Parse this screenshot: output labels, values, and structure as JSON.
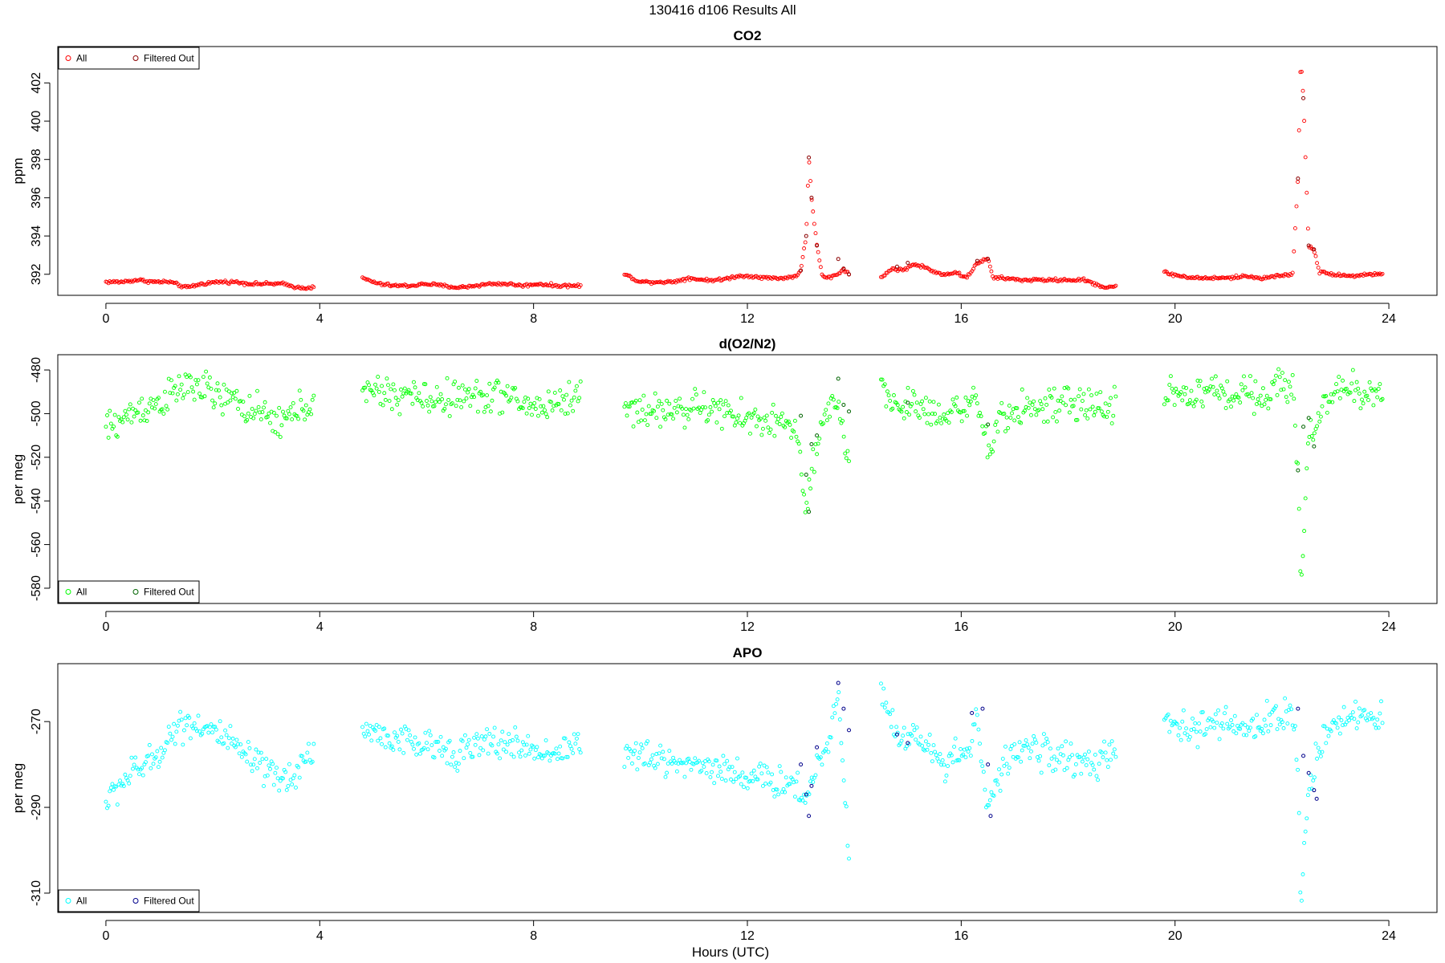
{
  "figure": {
    "title": "130416   d106   Results All",
    "xlabel": "Hours (UTC)",
    "colors": {
      "co2_all": "#ff0000",
      "co2_filtered": "#8b0000",
      "o2_all": "#00ff00",
      "o2_filtered": "#006400",
      "apo_all": "#00ffff",
      "apo_filtered": "#00008b"
    }
  },
  "chart_data": [
    {
      "type": "scatter",
      "title": "CO2",
      "xlabel": "",
      "ylabel": "ppm",
      "xlim": [
        -0.9,
        24.9
      ],
      "ylim": [
        390.9,
        403.9
      ],
      "xticks": [
        0,
        4,
        8,
        12,
        16,
        20,
        24
      ],
      "yticks": [
        392,
        394,
        396,
        398,
        400,
        402
      ],
      "grid": false,
      "legend": {
        "position": "top-left",
        "entries": [
          "All",
          "Filtered Out"
        ]
      },
      "series": [
        {
          "name": "All",
          "color": "#ff0000",
          "segments": [
            {
              "x": [
                0.0,
                0.3,
                0.6,
                0.9,
                1.2,
                1.5,
                1.8,
                2.1,
                2.4,
                2.7,
                3.0,
                3.3,
                3.6,
                3.9
              ],
              "y": [
                391.6,
                391.6,
                391.7,
                391.6,
                391.6,
                391.3,
                391.5,
                391.6,
                391.6,
                391.5,
                391.5,
                391.5,
                391.3,
                391.3
              ]
            },
            {
              "x": [
                4.8,
                5.1,
                5.4,
                5.7,
                6.0,
                6.3,
                6.6,
                6.9,
                7.2,
                7.5,
                7.8,
                8.1,
                8.4,
                8.7,
                8.9
              ],
              "y": [
                391.8,
                391.5,
                391.4,
                391.4,
                391.5,
                391.4,
                391.3,
                391.4,
                391.5,
                391.5,
                391.4,
                391.5,
                391.4,
                391.4,
                391.4
              ]
            },
            {
              "x": [
                9.7,
                10.0,
                10.3,
                10.6,
                10.9,
                11.2,
                11.5,
                11.8,
                12.1,
                12.4,
                12.7,
                12.9,
                13.0,
                13.1,
                13.15,
                13.2,
                13.3,
                13.4,
                13.5,
                13.6,
                13.7,
                13.8,
                13.9
              ],
              "y": [
                392.0,
                391.6,
                391.6,
                391.6,
                391.8,
                391.7,
                391.7,
                391.9,
                391.9,
                391.8,
                391.8,
                391.9,
                392.2,
                394.0,
                398.1,
                396.0,
                393.5,
                391.9,
                391.8,
                391.9,
                392.0,
                392.3,
                392.0
              ]
            },
            {
              "x": [
                14.5,
                14.7,
                14.9,
                15.1,
                15.3,
                15.5,
                15.7,
                15.9,
                16.1,
                16.3,
                16.5,
                16.6,
                16.8,
                17.1,
                17.4,
                17.7,
                18.0,
                18.3,
                18.5,
                18.7,
                18.9
              ],
              "y": [
                391.8,
                392.3,
                392.2,
                392.5,
                392.4,
                392.1,
                392.0,
                392.1,
                391.8,
                392.6,
                392.8,
                391.8,
                391.8,
                391.7,
                391.7,
                391.7,
                391.7,
                391.7,
                391.5,
                391.3,
                391.4
              ]
            },
            {
              "x": [
                19.8,
                20.1,
                20.4,
                20.7,
                21.0,
                21.3,
                21.6,
                21.9,
                22.2,
                22.3,
                22.35,
                22.4,
                22.5,
                22.6,
                22.7,
                23.0,
                23.3,
                23.6,
                23.9
              ],
              "y": [
                392.1,
                391.9,
                391.8,
                391.8,
                391.8,
                391.9,
                391.8,
                391.9,
                392.0,
                397.0,
                403.4,
                401.2,
                393.5,
                393.3,
                392.1,
                392.0,
                391.9,
                392.0,
                392.0
              ]
            }
          ]
        },
        {
          "name": "Filtered Out",
          "color": "#8b0000",
          "segments": [
            {
              "x": [
                13.0,
                13.1,
                13.15,
                13.2,
                13.3,
                13.7,
                13.8,
                13.9
              ],
              "y": [
                392.2,
                394.0,
                398.1,
                396.0,
                393.5,
                392.8,
                392.3,
                392.0
              ]
            },
            {
              "x": [
                14.8,
                15.0,
                16.3,
                16.5
              ],
              "y": [
                392.4,
                392.6,
                392.7,
                392.8
              ]
            },
            {
              "x": [
                22.3,
                22.4,
                22.5,
                22.6
              ],
              "y": [
                397.0,
                401.2,
                393.5,
                393.3
              ]
            }
          ]
        }
      ]
    },
    {
      "type": "scatter",
      "title": "d(O2/N2)",
      "xlabel": "",
      "ylabel": "per meg",
      "xlim": [
        -0.9,
        24.9
      ],
      "ylim": [
        -587,
        -473
      ],
      "xticks": [
        0,
        4,
        8,
        12,
        16,
        20,
        24
      ],
      "yticks": [
        -580,
        -560,
        -540,
        -520,
        -500,
        -480
      ],
      "grid": false,
      "legend": {
        "position": "bottom-left",
        "entries": [
          "All",
          "Filtered Out"
        ]
      },
      "series": [
        {
          "name": "All",
          "color": "#00ff00",
          "segments": [
            {
              "x": [
                0.0,
                0.3,
                0.6,
                0.9,
                1.2,
                1.5,
                1.8,
                2.1,
                2.4,
                2.7,
                3.0,
                3.3,
                3.6,
                3.9
              ],
              "y": [
                -507,
                -503,
                -498,
                -496,
                -492,
                -487,
                -488,
                -493,
                -494,
                -498,
                -502,
                -504,
                -498,
                -494
              ]
            },
            {
              "x": [
                4.8,
                5.1,
                5.4,
                5.7,
                6.0,
                6.3,
                6.6,
                6.9,
                7.2,
                7.5,
                7.8,
                8.1,
                8.4,
                8.7,
                8.9
              ],
              "y": [
                -492,
                -490,
                -492,
                -491,
                -494,
                -493,
                -492,
                -493,
                -491,
                -492,
                -496,
                -497,
                -495,
                -493,
                -491
              ]
            },
            {
              "x": [
                9.7,
                10.0,
                10.3,
                10.6,
                10.9,
                11.2,
                11.5,
                11.8,
                12.1,
                12.4,
                12.7,
                12.9,
                13.1,
                13.3,
                13.5,
                13.7,
                13.9
              ],
              "y": [
                -497,
                -498,
                -499,
                -498,
                -498,
                -497,
                -499,
                -502,
                -503,
                -503,
                -505,
                -506,
                -545,
                -515,
                -500,
                -495,
                -520
              ]
            },
            {
              "x": [
                14.5,
                14.7,
                14.9,
                15.1,
                15.3,
                15.5,
                15.7,
                15.9,
                16.1,
                16.3,
                16.5,
                16.7,
                16.9,
                17.2,
                17.5,
                17.8,
                18.1,
                18.4,
                18.7,
                18.9
              ],
              "y": [
                -488,
                -495,
                -497,
                -495,
                -498,
                -500,
                -499,
                -497,
                -498,
                -495,
                -518,
                -505,
                -500,
                -496,
                -498,
                -496,
                -496,
                -497,
                -497,
                -495
              ]
            },
            {
              "x": [
                19.8,
                20.1,
                20.4,
                20.7,
                21.0,
                21.3,
                21.6,
                21.9,
                22.2,
                22.3,
                22.35,
                22.5,
                22.6,
                22.8,
                23.1,
                23.4,
                23.7,
                23.9
              ],
              "y": [
                -490,
                -491,
                -492,
                -489,
                -491,
                -490,
                -491,
                -488,
                -487,
                -526,
                -583,
                -510,
                -507,
                -493,
                -490,
                -490,
                -491,
                -489
              ]
            }
          ]
        },
        {
          "name": "Filtered Out",
          "color": "#006400",
          "segments": [
            {
              "x": [
                13.0,
                13.1,
                13.15,
                13.2,
                13.3,
                13.7,
                13.8,
                13.9
              ],
              "y": [
                -501,
                -528,
                -545,
                -514,
                -510,
                -484,
                -496,
                -499
              ]
            },
            {
              "x": [
                15.0,
                16.5
              ],
              "y": [
                -495,
                -505
              ]
            },
            {
              "x": [
                22.3,
                22.4,
                22.5,
                22.6
              ],
              "y": [
                -526,
                -506,
                -502,
                -515
              ]
            }
          ]
        }
      ]
    },
    {
      "type": "scatter",
      "title": "APO",
      "xlabel": "Hours (UTC)",
      "ylabel": "per meg",
      "xlim": [
        -0.9,
        24.9
      ],
      "ylim": [
        -314.5,
        -256.5
      ],
      "xticks": [
        0,
        4,
        8,
        12,
        16,
        20,
        24
      ],
      "yticks": [
        -310,
        -290,
        -270
      ],
      "grid": false,
      "legend": {
        "position": "bottom-left",
        "entries": [
          "All",
          "Filtered Out"
        ]
      },
      "series": [
        {
          "name": "All",
          "color": "#00ffff",
          "segments": [
            {
              "x": [
                0.0,
                0.3,
                0.6,
                0.9,
                1.2,
                1.5,
                1.8,
                2.1,
                2.4,
                2.7,
                3.0,
                3.3,
                3.6,
                3.9
              ],
              "y": [
                -289,
                -284,
                -281,
                -279,
                -273,
                -270,
                -271,
                -273,
                -276,
                -279,
                -282,
                -284,
                -281,
                -276
              ]
            },
            {
              "x": [
                4.8,
                5.1,
                5.4,
                5.7,
                6.0,
                6.3,
                6.6,
                6.9,
                7.2,
                7.5,
                7.8,
                8.1,
                8.4,
                8.7,
                8.9
              ],
              "y": [
                -272,
                -273,
                -274,
                -275,
                -276,
                -276,
                -277,
                -276,
                -275,
                -275,
                -276,
                -277,
                -277,
                -276,
                -274
              ]
            },
            {
              "x": [
                9.7,
                10.0,
                10.3,
                10.6,
                10.9,
                11.2,
                11.5,
                11.8,
                12.1,
                12.4,
                12.7,
                12.9,
                13.1,
                13.3,
                13.5,
                13.7,
                13.9
              ],
              "y": [
                -278,
                -278,
                -279,
                -279,
                -280,
                -280,
                -281,
                -282,
                -283,
                -284,
                -284,
                -285,
                -288,
                -280,
                -276,
                -262,
                -301
              ]
            },
            {
              "x": [
                14.5,
                14.7,
                14.9,
                15.1,
                15.3,
                15.5,
                15.7,
                15.9,
                16.1,
                16.3,
                16.5,
                16.7,
                16.9,
                17.2,
                17.5,
                17.8,
                18.1,
                18.4,
                18.7,
                18.9
              ],
              "y": [
                -262,
                -271,
                -274,
                -272,
                -276,
                -278,
                -279,
                -277,
                -278,
                -269,
                -290,
                -284,
                -278,
                -276,
                -277,
                -278,
                -279,
                -280,
                -279,
                -277
              ]
            },
            {
              "x": [
                19.8,
                20.1,
                20.4,
                20.7,
                21.0,
                21.3,
                21.6,
                21.9,
                22.2,
                22.3,
                22.35,
                22.5,
                22.6,
                22.8,
                23.1,
                23.4,
                23.7,
                23.9
              ],
              "y": [
                -270,
                -272,
                -272,
                -270,
                -271,
                -272,
                -270,
                -269,
                -268,
                -282,
                -313,
                -285,
                -280,
                -273,
                -269,
                -268,
                -270,
                -269
              ]
            }
          ]
        },
        {
          "name": "Filtered Out",
          "color": "#00008b",
          "segments": [
            {
              "x": [
                13.0,
                13.1,
                13.15,
                13.2,
                13.3,
                13.7,
                13.8,
                13.9
              ],
              "y": [
                -280,
                -287,
                -292,
                -285,
                -276,
                -261,
                -267,
                -272
              ]
            },
            {
              "x": [
                14.8,
                15.0,
                16.2,
                16.4,
                16.5,
                16.55
              ],
              "y": [
                -273,
                -275,
                -268,
                -267,
                -280,
                -292
              ]
            },
            {
              "x": [
                22.3,
                22.4,
                22.5,
                22.6,
                22.65
              ],
              "y": [
                -267,
                -278,
                -282,
                -286,
                -288
              ]
            }
          ]
        }
      ]
    }
  ]
}
